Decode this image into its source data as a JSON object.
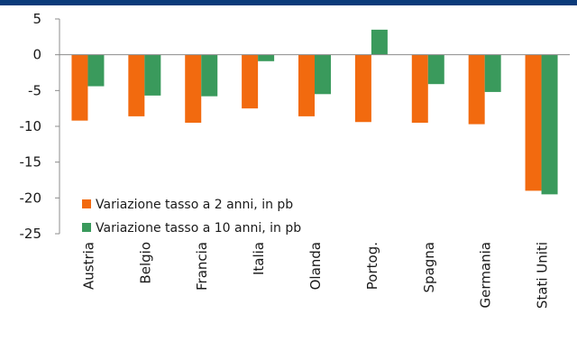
{
  "chart_data": {
    "type": "bar",
    "categories": [
      "Austria",
      "Belgio",
      "Francia",
      "Italia",
      "Olanda",
      "Portog.",
      "Spagna",
      "Germania",
      "Stati Uniti"
    ],
    "series": [
      {
        "name": "Variazione tasso a 2 anni, in pb",
        "color": "#f26a0f",
        "values": [
          -9.2,
          -8.6,
          -9.5,
          -7.5,
          -8.6,
          -9.4,
          -9.5,
          -9.7,
          -19.0
        ]
      },
      {
        "name": "Variazione tasso a 10 anni, in pb",
        "color": "#3a9a5c",
        "values": [
          -4.4,
          -5.7,
          -5.8,
          -0.9,
          -5.5,
          3.5,
          -4.1,
          -5.2,
          -19.5
        ]
      }
    ],
    "ylim": [
      -25,
      5
    ],
    "yticks": [
      5,
      0,
      -5,
      -10,
      -15,
      -20,
      -25
    ],
    "legend_position": "bottom-left",
    "grid": false,
    "top_band_color": "#0b3b7a"
  }
}
